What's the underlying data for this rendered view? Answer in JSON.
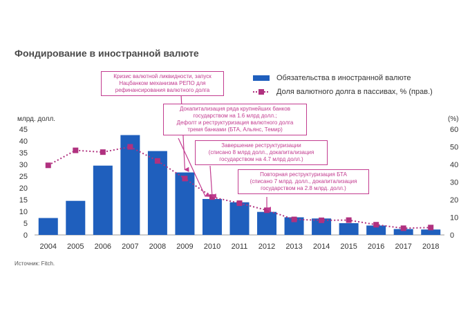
{
  "title": "Фондирование в иностранной валюте",
  "source": "Источник: Fitch.",
  "colors": {
    "bar": "#1f5fbd",
    "line": "#b0317f",
    "callout": "#c23b8f"
  },
  "chart_data": {
    "type": "bar",
    "categories": [
      "2004",
      "2005",
      "2006",
      "2007",
      "2008",
      "2009",
      "2010",
      "2011",
      "2012",
      "2013",
      "2014",
      "2015",
      "2016",
      "2017",
      "2018"
    ],
    "series": [
      {
        "name": "Обязательства в иностранной валюте",
        "type": "bar",
        "axis": "left",
        "values": [
          7.2,
          14.5,
          29.5,
          42.5,
          35.7,
          26.6,
          15.3,
          13.9,
          9.8,
          7.5,
          7.0,
          5.0,
          4.0,
          2.5,
          2.3
        ]
      },
      {
        "name": "Доля валютного долга в пассивах, % (прав.)",
        "type": "line",
        "axis": "right",
        "values": [
          39.5,
          48,
          47,
          50,
          42,
          32,
          21.5,
          18,
          14,
          8.8,
          8.3,
          8.4,
          5.8,
          3.8,
          4.2
        ]
      }
    ],
    "ylabel": "млрд. долл.",
    "y2label": "(%)",
    "ylim": [
      0,
      45
    ],
    "y2lim": [
      0,
      60
    ],
    "yticks": [
      0,
      5,
      10,
      15,
      20,
      25,
      30,
      35,
      40,
      45
    ],
    "y2ticks": [
      0,
      10,
      20,
      30,
      40,
      50,
      60
    ],
    "legend": [
      {
        "label": "Обязательства в иностранной валюте",
        "kind": "bar"
      },
      {
        "label": "Доля валютного долга в пассивах, % (прав.)",
        "kind": "line"
      }
    ],
    "annotations": [
      {
        "year": "2009",
        "lines": [
          "Кризис валютной ликвидности, запуск",
          "Нацбанком механизма РЕПО для",
          "рефинансирования валютного долга"
        ]
      },
      {
        "year": "2010",
        "lines": [
          "Докапитализация ряда крупнейших банков",
          "государством на 1.6 млрд долл.;",
          "Дефолт и реструктуризация валютного долга",
          "тремя банками (БТА, Альянс, Темир)"
        ]
      },
      {
        "year": "2010",
        "lines": [
          "Завершение реструктуризации",
          "(списано 8 млрд долл., докапитализация",
          "государством на 4.7 млрд долл.)"
        ]
      },
      {
        "year": "2012",
        "lines": [
          "Повторная реструктуризация БТА",
          "(списано 7 млрд. долл., докапитализация",
          "государством на 2.8 млрд. долл.)"
        ]
      }
    ]
  }
}
